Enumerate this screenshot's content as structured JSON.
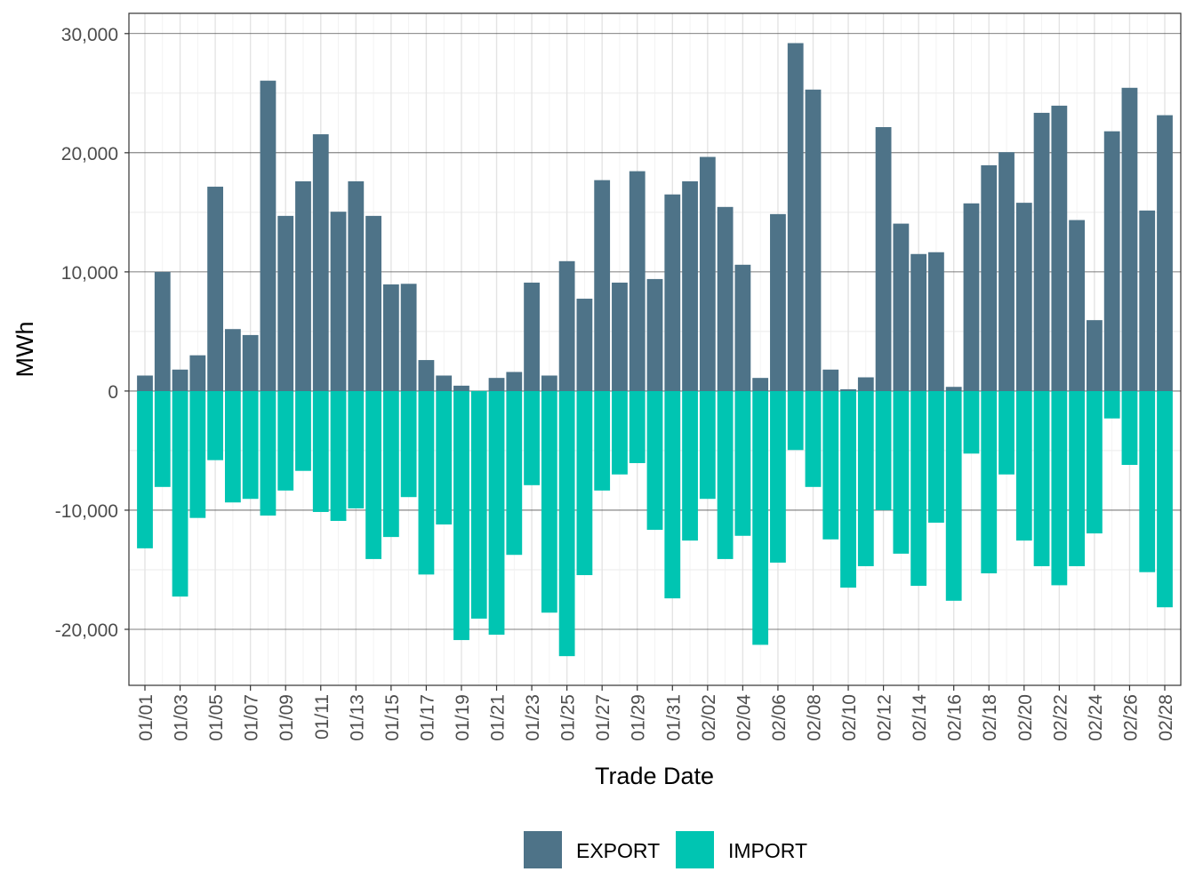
{
  "chart_data": {
    "type": "bar",
    "stacked": "diverging",
    "xlabel": "Trade Date",
    "ylabel": "MWh",
    "ylim": [
      -24700,
      31700
    ],
    "yticks": [
      -20000,
      -10000,
      0,
      10000,
      20000,
      30000
    ],
    "ytick_labels": [
      "-20,000",
      "-10,000",
      "0",
      "10,000",
      "20,000",
      "30,000"
    ],
    "grid": true,
    "legend_position": "bottom",
    "categories": [
      "01/01",
      "01/02",
      "01/03",
      "01/04",
      "01/05",
      "01/06",
      "01/07",
      "01/08",
      "01/09",
      "01/10",
      "01/11",
      "01/12",
      "01/13",
      "01/14",
      "01/15",
      "01/16",
      "01/17",
      "01/18",
      "01/19",
      "01/20",
      "01/21",
      "01/22",
      "01/23",
      "01/24",
      "01/25",
      "01/26",
      "01/27",
      "01/28",
      "01/29",
      "01/30",
      "01/31",
      "02/01",
      "02/02",
      "02/03",
      "02/04",
      "02/05",
      "02/06",
      "02/07",
      "02/08",
      "02/09",
      "02/10",
      "02/11",
      "02/12",
      "02/13",
      "02/14",
      "02/15",
      "02/16",
      "02/17",
      "02/18",
      "02/19",
      "02/20",
      "02/21",
      "02/22",
      "02/23",
      "02/24",
      "02/25",
      "02/26",
      "02/27",
      "02/28"
    ],
    "series": [
      {
        "name": "EXPORT",
        "color": "#4E7388",
        "values": [
          1300,
          10000,
          1800,
          3000,
          17150,
          5200,
          4700,
          26050,
          14700,
          17600,
          21550,
          15050,
          17600,
          14700,
          8950,
          9000,
          2600,
          1300,
          450,
          0,
          1100,
          1600,
          9100,
          1300,
          10900,
          7750,
          17700,
          9100,
          18450,
          9400,
          16500,
          17600,
          19650,
          15450,
          10600,
          1100,
          14850,
          29200,
          25300,
          1800,
          150,
          1150,
          22150,
          14050,
          11500,
          11650,
          350,
          15750,
          18950,
          20050,
          15800,
          23350,
          23950,
          14350,
          5950,
          21800,
          25450,
          15150,
          23150
        ]
      },
      {
        "name": "IMPORT",
        "color": "#00C5B2",
        "values": [
          -13200,
          -8050,
          -17250,
          -10650,
          -5800,
          -9350,
          -9050,
          -10450,
          -8350,
          -6700,
          -10150,
          -10900,
          -9850,
          -14100,
          -12250,
          -8900,
          -15400,
          -11200,
          -20900,
          -19100,
          -20450,
          -13750,
          -7900,
          -18600,
          -22250,
          -15450,
          -8350,
          -7000,
          -6050,
          -11650,
          -17400,
          -12550,
          -9050,
          -14100,
          -12150,
          -21300,
          -14400,
          -4950,
          -8050,
          -12450,
          -16500,
          -14700,
          -10000,
          -13650,
          -16350,
          -11050,
          -17600,
          -5250,
          -15300,
          -7000,
          -12550,
          -14700,
          -16300,
          -14700,
          -11950,
          -2300,
          -6200,
          -15200,
          -18150
        ]
      }
    ]
  }
}
